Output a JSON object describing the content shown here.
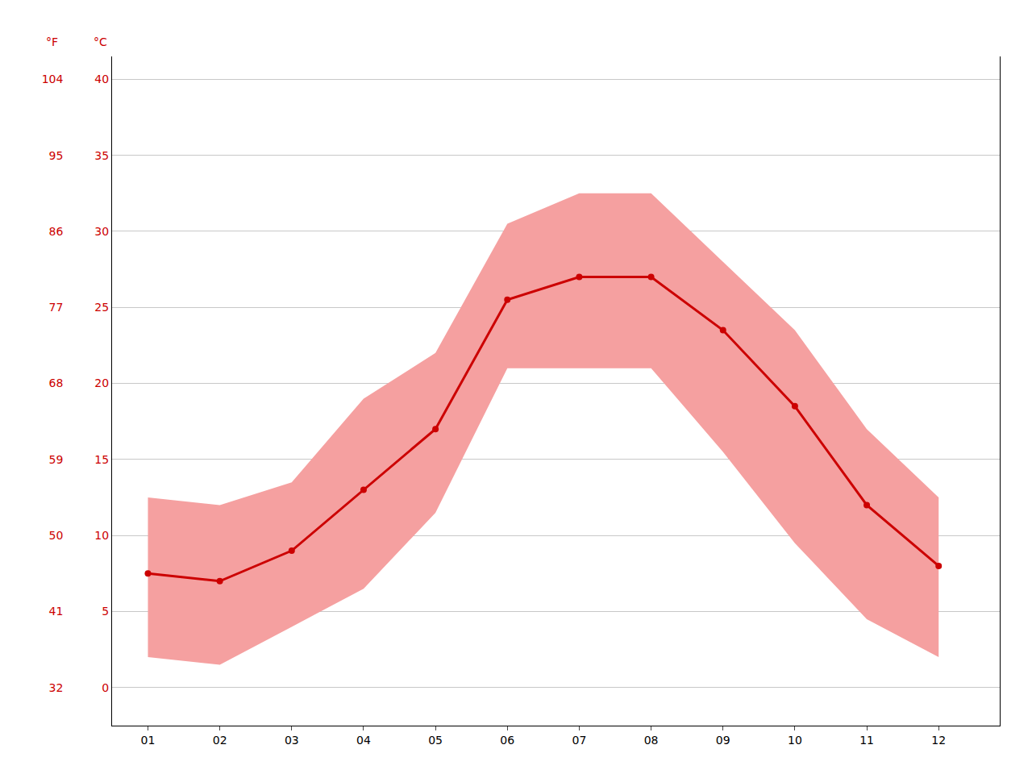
{
  "chart_data": {
    "type": "line",
    "x": [
      1,
      2,
      3,
      4,
      5,
      6,
      7,
      8,
      9,
      10,
      11,
      12
    ],
    "series": [
      {
        "type": "band",
        "min": [
          2.0,
          1.5,
          4.0,
          6.5,
          11.5,
          21.0,
          21.0,
          21.0,
          15.5,
          9.5,
          4.5,
          2.0
        ],
        "max": [
          12.5,
          12.0,
          13.5,
          19.0,
          22.0,
          30.5,
          32.5,
          32.5,
          28.0,
          23.5,
          17.0,
          12.5
        ],
        "color": "#f5a0a0"
      },
      {
        "type": "line",
        "values": [
          7.5,
          7.0,
          9.0,
          13.0,
          17.0,
          25.5,
          27.0,
          27.0,
          23.5,
          18.5,
          12.0,
          8.0
        ],
        "color": "#cc0000",
        "marker": "circle",
        "line_style": "solid"
      }
    ],
    "xlim": [
      0.5,
      12.85
    ],
    "xticks": [
      {
        "value": 1,
        "label": "01"
      },
      {
        "value": 2,
        "label": "02"
      },
      {
        "value": 3,
        "label": "03"
      },
      {
        "value": 4,
        "label": "04"
      },
      {
        "value": 5,
        "label": "05"
      },
      {
        "value": 6,
        "label": "06"
      },
      {
        "value": 7,
        "label": "07"
      },
      {
        "value": 8,
        "label": "08"
      },
      {
        "value": 9,
        "label": "09"
      },
      {
        "value": 10,
        "label": "10"
      },
      {
        "value": 11,
        "label": "11"
      },
      {
        "value": 12,
        "label": "12"
      }
    ],
    "ylabel": "°C",
    "ylim": [
      -2.5,
      41.5
    ],
    "yticks": [
      0,
      5,
      10,
      15,
      20,
      25,
      30,
      35,
      40
    ],
    "y2label": "°F",
    "y2lim": [
      27.5,
      106.7
    ],
    "y2ticks": [
      32,
      41,
      50,
      59,
      68,
      77,
      86,
      95,
      104
    ],
    "grid": "y"
  }
}
